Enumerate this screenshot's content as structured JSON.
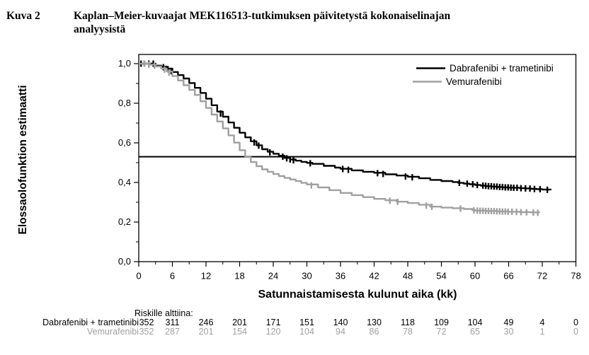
{
  "figure": {
    "label": "Kuva 2",
    "title_lines": [
      "Kaplan–Meier-kuvaajat MEK116513-tutkimuksen päivitetystä kokonaiselinajan",
      "analyysistä"
    ]
  },
  "chart_data": {
    "type": "line",
    "subtype": "kaplan-meier-step",
    "title": "",
    "xlabel": "Satunnaistamisesta kulunut aika (kk)",
    "ylabel": "Elossaolofunktion estimaatti",
    "xlim": [
      0,
      78
    ],
    "ylim": [
      0,
      1.05
    ],
    "grid": false,
    "x_ticks": [
      0,
      6,
      12,
      18,
      24,
      30,
      36,
      42,
      48,
      54,
      60,
      66,
      72,
      78
    ],
    "x_minor_ticks": [
      3,
      9,
      15,
      21,
      27,
      33,
      39,
      45,
      51,
      57,
      63,
      69,
      75
    ],
    "y_ticks": [
      0,
      0.2,
      0.4,
      0.6,
      0.8,
      1.0
    ],
    "y_tick_labels": [
      "0,0",
      "0,2",
      "0,4",
      "0,6",
      "0,8",
      "1,0"
    ],
    "y_minor_ticks": [
      0.1,
      0.3,
      0.5,
      0.7,
      0.9
    ],
    "reference_line_y": 0.53,
    "legend_position": "top-right",
    "series": [
      {
        "name": "Dabrafenibi + trametinibi",
        "color": "#000000",
        "points": [
          [
            0,
            1.0
          ],
          [
            3,
            0.99
          ],
          [
            4,
            0.985
          ],
          [
            5,
            0.975
          ],
          [
            6,
            0.958
          ],
          [
            7,
            0.942
          ],
          [
            8,
            0.925
          ],
          [
            9,
            0.902
          ],
          [
            10,
            0.878
          ],
          [
            11,
            0.852
          ],
          [
            12,
            0.823
          ],
          [
            13,
            0.79
          ],
          [
            14,
            0.758
          ],
          [
            15,
            0.732
          ],
          [
            16,
            0.703
          ],
          [
            17,
            0.676
          ],
          [
            18,
            0.651
          ],
          [
            19,
            0.628
          ],
          [
            20,
            0.608
          ],
          [
            21,
            0.588
          ],
          [
            22,
            0.568
          ],
          [
            23,
            0.555
          ],
          [
            24,
            0.545
          ],
          [
            25,
            0.535
          ],
          [
            26,
            0.524
          ],
          [
            27,
            0.516
          ],
          [
            28,
            0.51
          ],
          [
            29,
            0.504
          ],
          [
            30,
            0.499
          ],
          [
            31,
            0.494
          ],
          [
            33,
            0.484
          ],
          [
            35,
            0.475
          ],
          [
            36,
            0.469
          ],
          [
            38,
            0.461
          ],
          [
            40,
            0.454
          ],
          [
            42,
            0.449
          ],
          [
            44,
            0.441
          ],
          [
            46,
            0.435
          ],
          [
            48,
            0.429
          ],
          [
            50,
            0.421
          ],
          [
            52,
            0.413
          ],
          [
            54,
            0.407
          ],
          [
            56,
            0.402
          ],
          [
            57,
            0.398
          ],
          [
            58,
            0.394
          ],
          [
            59,
            0.391
          ],
          [
            60,
            0.387
          ],
          [
            61,
            0.384
          ],
          [
            62,
            0.381
          ],
          [
            63,
            0.379
          ],
          [
            64,
            0.377
          ],
          [
            65,
            0.375
          ],
          [
            66,
            0.374
          ],
          [
            67,
            0.373
          ],
          [
            68,
            0.371
          ],
          [
            69,
            0.37
          ],
          [
            70,
            0.368
          ],
          [
            71,
            0.366
          ],
          [
            72,
            0.364
          ],
          [
            73.5,
            0.361
          ]
        ],
        "censor_marks": [
          [
            0.4,
            1.0
          ],
          [
            1.0,
            1.0
          ],
          [
            1.8,
            1.0
          ],
          [
            2.6,
            1.0
          ],
          [
            4.4,
            0.982
          ],
          [
            5.2,
            0.972
          ],
          [
            5.8,
            0.962
          ],
          [
            14.6,
            0.748
          ],
          [
            20.6,
            0.602
          ],
          [
            21.4,
            0.586
          ],
          [
            23.4,
            0.552
          ],
          [
            25.7,
            0.53
          ],
          [
            26.4,
            0.522
          ],
          [
            27.0,
            0.516
          ],
          [
            27.6,
            0.512
          ],
          [
            30.6,
            0.497
          ],
          [
            36.4,
            0.468
          ],
          [
            37.4,
            0.464
          ],
          [
            42.6,
            0.447
          ],
          [
            43.6,
            0.443
          ],
          [
            47.6,
            0.43
          ],
          [
            48.8,
            0.426
          ],
          [
            57.2,
            0.398
          ],
          [
            58.6,
            0.394
          ],
          [
            59.6,
            0.391
          ],
          [
            60.4,
            0.387
          ],
          [
            61.4,
            0.384
          ],
          [
            61.9,
            0.383
          ],
          [
            62.4,
            0.381
          ],
          [
            62.9,
            0.381
          ],
          [
            63.4,
            0.379
          ],
          [
            63.9,
            0.379
          ],
          [
            64.4,
            0.377
          ],
          [
            64.9,
            0.377
          ],
          [
            65.4,
            0.375
          ],
          [
            65.9,
            0.375
          ],
          [
            66.4,
            0.374
          ],
          [
            66.9,
            0.373
          ],
          [
            67.5,
            0.373
          ],
          [
            68.2,
            0.371
          ],
          [
            69.0,
            0.37
          ],
          [
            69.8,
            0.369
          ],
          [
            70.6,
            0.367
          ],
          [
            71.6,
            0.366
          ],
          [
            72.9,
            0.363
          ]
        ]
      },
      {
        "name": "Vemurafenibi",
        "color": "#a0a0a0",
        "points": [
          [
            0,
            1.0
          ],
          [
            2,
            0.995
          ],
          [
            3,
            0.986
          ],
          [
            4,
            0.975
          ],
          [
            5,
            0.961
          ],
          [
            6,
            0.937
          ],
          [
            7,
            0.915
          ],
          [
            8,
            0.891
          ],
          [
            9,
            0.867
          ],
          [
            10,
            0.842
          ],
          [
            11,
            0.81
          ],
          [
            12,
            0.776
          ],
          [
            13,
            0.743
          ],
          [
            14,
            0.708
          ],
          [
            15,
            0.673
          ],
          [
            16,
            0.638
          ],
          [
            17,
            0.601
          ],
          [
            18,
            0.563
          ],
          [
            19,
            0.528
          ],
          [
            20,
            0.503
          ],
          [
            21,
            0.482
          ],
          [
            22,
            0.466
          ],
          [
            23,
            0.454
          ],
          [
            24,
            0.443
          ],
          [
            25,
            0.432
          ],
          [
            26,
            0.423
          ],
          [
            27,
            0.415
          ],
          [
            28,
            0.407
          ],
          [
            29,
            0.398
          ],
          [
            30,
            0.39
          ],
          [
            32,
            0.375
          ],
          [
            34,
            0.361
          ],
          [
            36,
            0.347
          ],
          [
            38,
            0.336
          ],
          [
            40,
            0.326
          ],
          [
            42,
            0.317
          ],
          [
            44,
            0.31
          ],
          [
            46,
            0.303
          ],
          [
            48,
            0.296
          ],
          [
            50,
            0.287
          ],
          [
            52,
            0.278
          ],
          [
            54,
            0.273
          ],
          [
            56,
            0.27
          ],
          [
            58,
            0.266
          ],
          [
            59.5,
            0.261
          ],
          [
            60,
            0.258
          ],
          [
            62,
            0.256
          ],
          [
            64,
            0.254
          ],
          [
            66,
            0.252
          ],
          [
            68,
            0.25
          ],
          [
            70,
            0.249
          ],
          [
            71.5,
            0.247
          ]
        ],
        "censor_marks": [
          [
            1.0,
            1.0
          ],
          [
            1.8,
            0.995
          ],
          [
            2.8,
            0.99
          ],
          [
            4.6,
            0.97
          ],
          [
            5.4,
            0.955
          ],
          [
            30.8,
            0.385
          ],
          [
            44.8,
            0.308
          ],
          [
            46.2,
            0.302
          ],
          [
            51.3,
            0.283
          ],
          [
            52.3,
            0.277
          ],
          [
            57.4,
            0.268
          ],
          [
            59.8,
            0.259
          ],
          [
            60.4,
            0.258
          ],
          [
            60.9,
            0.257
          ],
          [
            61.4,
            0.257
          ],
          [
            61.9,
            0.256
          ],
          [
            62.4,
            0.256
          ],
          [
            62.9,
            0.255
          ],
          [
            63.4,
            0.255
          ],
          [
            63.9,
            0.254
          ],
          [
            64.4,
            0.254
          ],
          [
            64.9,
            0.253
          ],
          [
            65.4,
            0.253
          ],
          [
            65.9,
            0.252
          ],
          [
            66.6,
            0.252
          ],
          [
            67.4,
            0.251
          ],
          [
            68.2,
            0.25
          ],
          [
            69.2,
            0.249
          ],
          [
            70.4,
            0.248
          ],
          [
            71.2,
            0.247
          ]
        ]
      }
    ]
  },
  "risk_table": {
    "header": "Riskille alttiina:",
    "time_points": [
      0,
      6,
      12,
      18,
      24,
      30,
      36,
      42,
      48,
      54,
      60,
      66,
      72,
      78
    ],
    "rows": [
      {
        "label": "Dabrafenibi + trametinibi",
        "color": "#000000",
        "values": [
          352,
          311,
          246,
          201,
          171,
          151,
          140,
          130,
          118,
          109,
          104,
          49,
          4,
          0
        ]
      },
      {
        "label": "Vemurafenibi",
        "color": "#a0a0a0",
        "values": [
          352,
          287,
          201,
          154,
          120,
          104,
          94,
          86,
          78,
          72,
          65,
          30,
          1,
          0
        ]
      }
    ]
  }
}
